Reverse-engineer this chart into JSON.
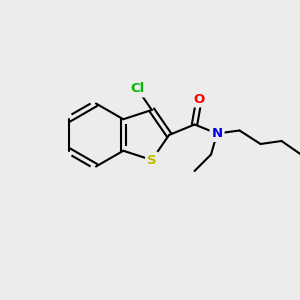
{
  "background_color": "#ececec",
  "atom_colors": {
    "C": "#000000",
    "Cl": "#00bb00",
    "O": "#ff0000",
    "N": "#0000ee",
    "S": "#bbbb00"
  },
  "bond_color": "#000000",
  "bond_width": 1.5,
  "figsize": [
    3.0,
    3.0
  ],
  "dpi": 100
}
